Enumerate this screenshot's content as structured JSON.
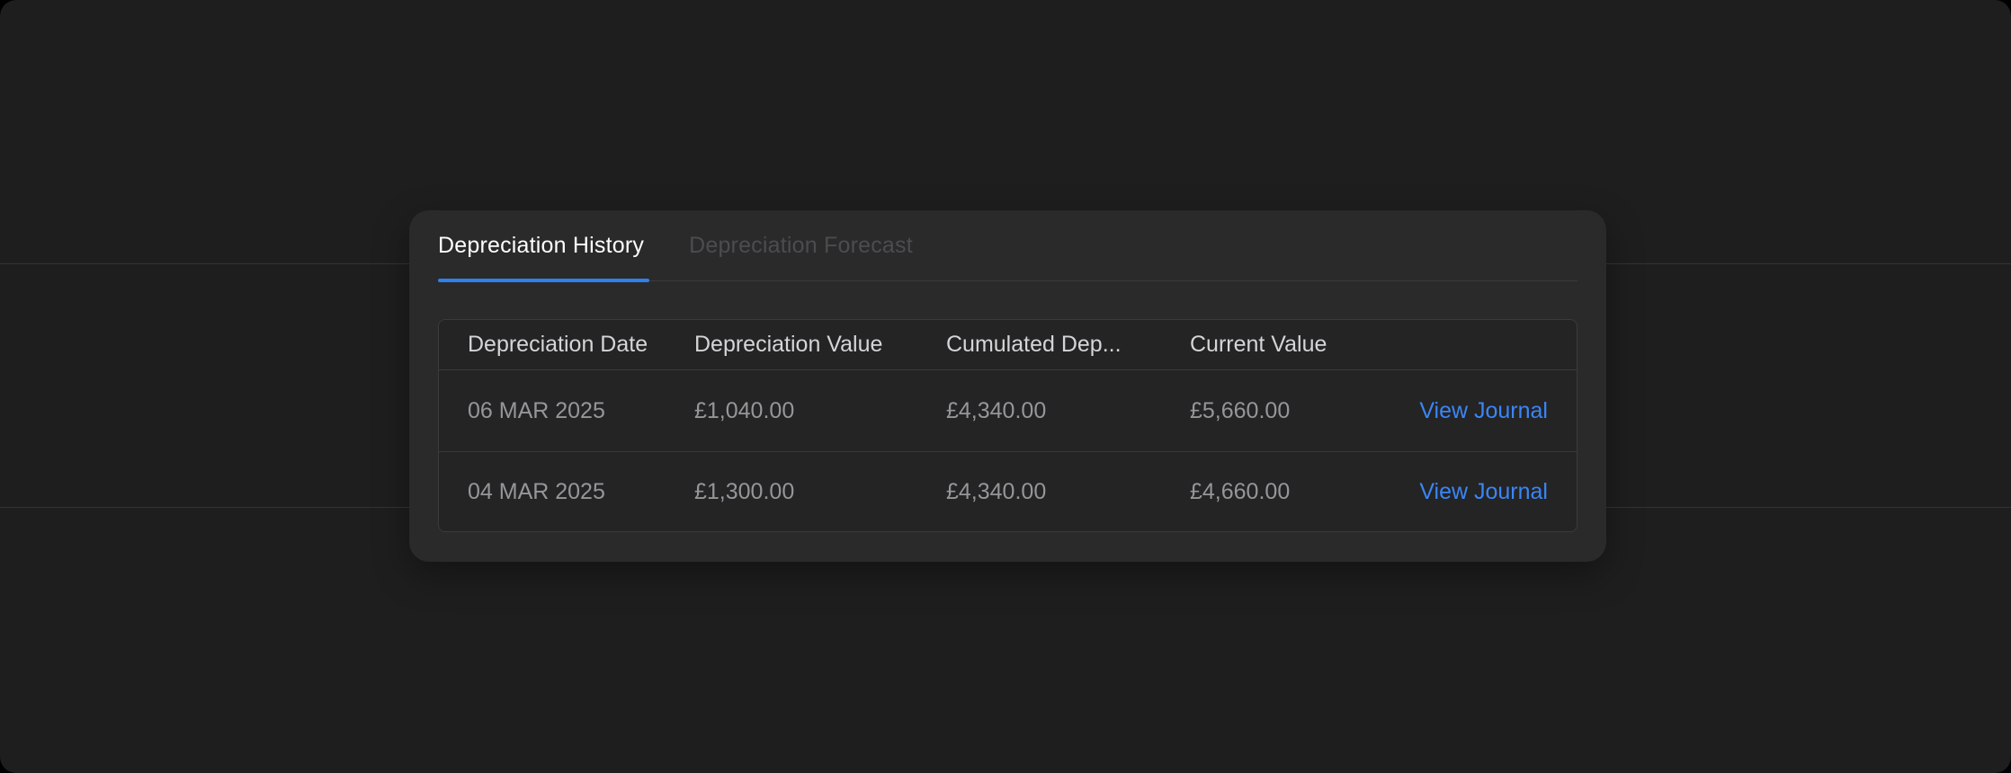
{
  "tabs": [
    {
      "label": "Depreciation History",
      "active": true
    },
    {
      "label": "Depreciation Forecast",
      "active": false
    }
  ],
  "table": {
    "columns": [
      "Depreciation Date",
      "Depreciation Value",
      "Cumulated Dep...",
      "Current Value"
    ],
    "rows": [
      {
        "date": "06 MAR 2025",
        "depreciation_value": "£1,040.00",
        "cumulated_depreciation": "£4,340.00",
        "current_value": "£5,660.00",
        "action": "View Journal"
      },
      {
        "date": "04 MAR 2025",
        "depreciation_value": "£1,300.00",
        "cumulated_depreciation": "£4,340.00",
        "current_value": "£4,660.00",
        "action": "View Journal"
      }
    ]
  },
  "colors": {
    "page_background": "#000000",
    "panel_background": "#1e1e1f",
    "background_divider": "#343436",
    "card_background": "#2a2a2b",
    "table_background": "#242425",
    "table_border": "#3b3b3d",
    "header_text": "#d5d5d7",
    "cell_text": "#96969a",
    "active_tab_text": "#ffffff",
    "inactive_tab_text": "#4c4c4f",
    "accent_blue": "#2e80ec",
    "link_blue": "#3a86f7"
  }
}
